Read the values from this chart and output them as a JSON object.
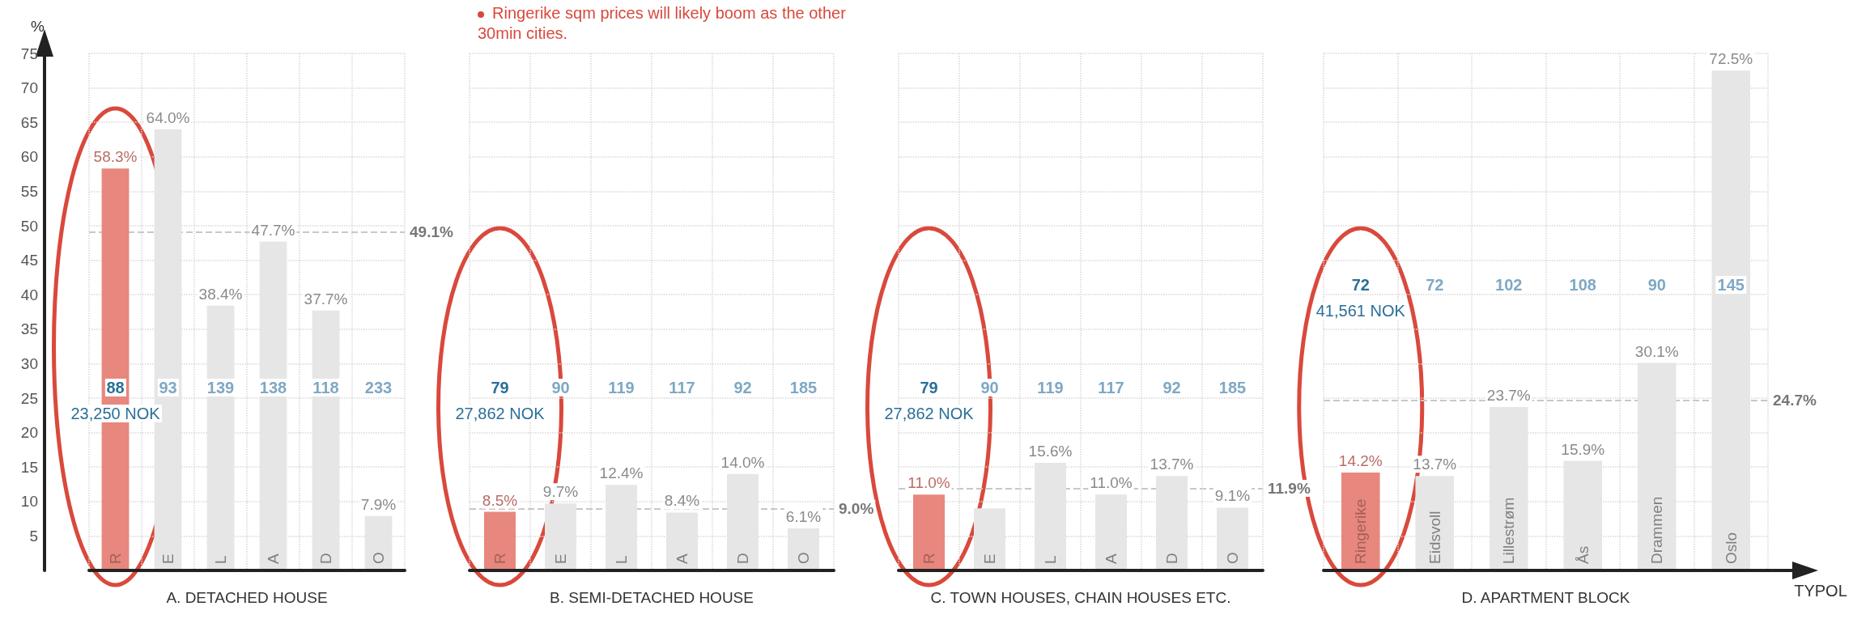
{
  "chart_data": [
    {
      "type": "bar",
      "ylabel": "%",
      "xlabel": "A. DETACHED HOUSE",
      "categories": [
        "R",
        "E",
        "L",
        "A",
        "D",
        "O"
      ],
      "values": [
        58.3,
        64.0,
        38.4,
        47.7,
        37.7,
        7.9
      ],
      "colors": [
        "#e8877d",
        "#e6e6e6",
        "#e6e6e6",
        "#e6e6e6",
        "#e6e6e6",
        "#e6e6e6"
      ],
      "value_labels": [
        "58.3%",
        "64.0%",
        "38.4%",
        "47.7%",
        "37.7%",
        "7.9%"
      ],
      "ylim": [
        0,
        75
      ],
      "yticks": [
        5,
        10,
        15,
        20,
        25,
        30,
        35,
        40,
        45,
        50,
        55,
        60,
        65,
        70,
        75
      ],
      "grid": true,
      "ref_lines": [
        {
          "axis": "y",
          "value": 49.1,
          "label": "49.1%",
          "color": "#c8c8c8",
          "line_style": "dashed"
        }
      ],
      "annotations": [
        "88",
        "23,250 NOK",
        "93",
        "139",
        "138",
        "118",
        "233"
      ]
    },
    {
      "type": "bar",
      "title": "Ringerike sqm prices will likely boom as the other 30min cities.",
      "xlabel": "B. SEMI-DETACHED HOUSE",
      "categories": [
        "R",
        "E",
        "L",
        "A",
        "D",
        "O"
      ],
      "values": [
        8.5,
        9.7,
        12.4,
        8.4,
        14.0,
        6.1
      ],
      "colors": [
        "#e8877d",
        "#e6e6e6",
        "#e6e6e6",
        "#e6e6e6",
        "#e6e6e6",
        "#e6e6e6"
      ],
      "value_labels": [
        "8.5%",
        "9.7%",
        "12.4%",
        "8.4%",
        "14.0%",
        "6.1%"
      ],
      "ylim": [
        0,
        75
      ],
      "yticks": [
        5,
        10,
        15,
        20,
        25,
        30,
        35,
        40,
        45,
        50,
        55,
        60,
        65,
        70,
        75
      ],
      "grid": true,
      "tick_labels": "x",
      "ref_lines": [
        {
          "axis": "y",
          "value": 9.0,
          "label": "9.0%",
          "color": "#c8c8c8",
          "line_style": "dashed"
        }
      ],
      "annotations": [
        "79",
        "27,862 NOK",
        "90",
        "119",
        "117",
        "92",
        "185"
      ]
    },
    {
      "type": "bar",
      "xlabel": "C. TOWN HOUSES, CHAIN HOUSES ETC.",
      "categories": [
        "R",
        "E",
        "L",
        "A",
        "D",
        "O"
      ],
      "values": [
        11.0,
        9.0,
        15.6,
        11.0,
        13.7,
        9.1
      ],
      "colors": [
        "#e8877d",
        "#e6e6e6",
        "#e6e6e6",
        "#e6e6e6",
        "#e6e6e6",
        "#e6e6e6"
      ],
      "value_labels": [
        "11.0%",
        null,
        "15.6%",
        "11.0%",
        "13.7%",
        "9.1%"
      ],
      "ylim": [
        0,
        75
      ],
      "yticks": [
        5,
        10,
        15,
        20,
        25,
        30,
        35,
        40,
        45,
        50,
        55,
        60,
        65,
        70,
        75
      ],
      "grid": true,
      "tick_labels": "x",
      "ref_lines": [
        {
          "axis": "y",
          "value": 11.9,
          "label": "11.9%",
          "color": "#c8c8c8",
          "line_style": "dashed"
        }
      ],
      "annotations": [
        "79",
        "27,862 NOK",
        "90",
        "119",
        "117",
        "92",
        "185"
      ]
    },
    {
      "type": "bar",
      "xlabel": "D. APARTMENT BLOCK",
      "categories": [
        "Ringerike",
        "Eidsvoll",
        "Lillestrøm",
        "Ås",
        "Drammen",
        "Oslo"
      ],
      "values": [
        14.2,
        13.7,
        23.7,
        15.9,
        30.1,
        72.5
      ],
      "colors": [
        "#e8877d",
        "#e6e6e6",
        "#e6e6e6",
        "#e6e6e6",
        "#e6e6e6",
        "#e6e6e6"
      ],
      "value_labels": [
        "14.2%",
        "13.7%",
        "23.7%",
        "15.9%",
        "30.1%",
        "72.5%"
      ],
      "ylim": [
        0,
        75
      ],
      "yticks": [
        5,
        10,
        15,
        20,
        25,
        30,
        35,
        40,
        45,
        50,
        55,
        60,
        65,
        70,
        75
      ],
      "grid": true,
      "tick_labels": "x",
      "ref_lines": [
        {
          "axis": "y",
          "value": 24.7,
          "label": "24.7%",
          "color": "#c8c8c8",
          "line_style": "dashed"
        }
      ],
      "annotations": [
        "72",
        "41,561 NOK",
        "72",
        "102",
        "108",
        "90",
        "145",
        "TYPOL"
      ]
    }
  ]
}
